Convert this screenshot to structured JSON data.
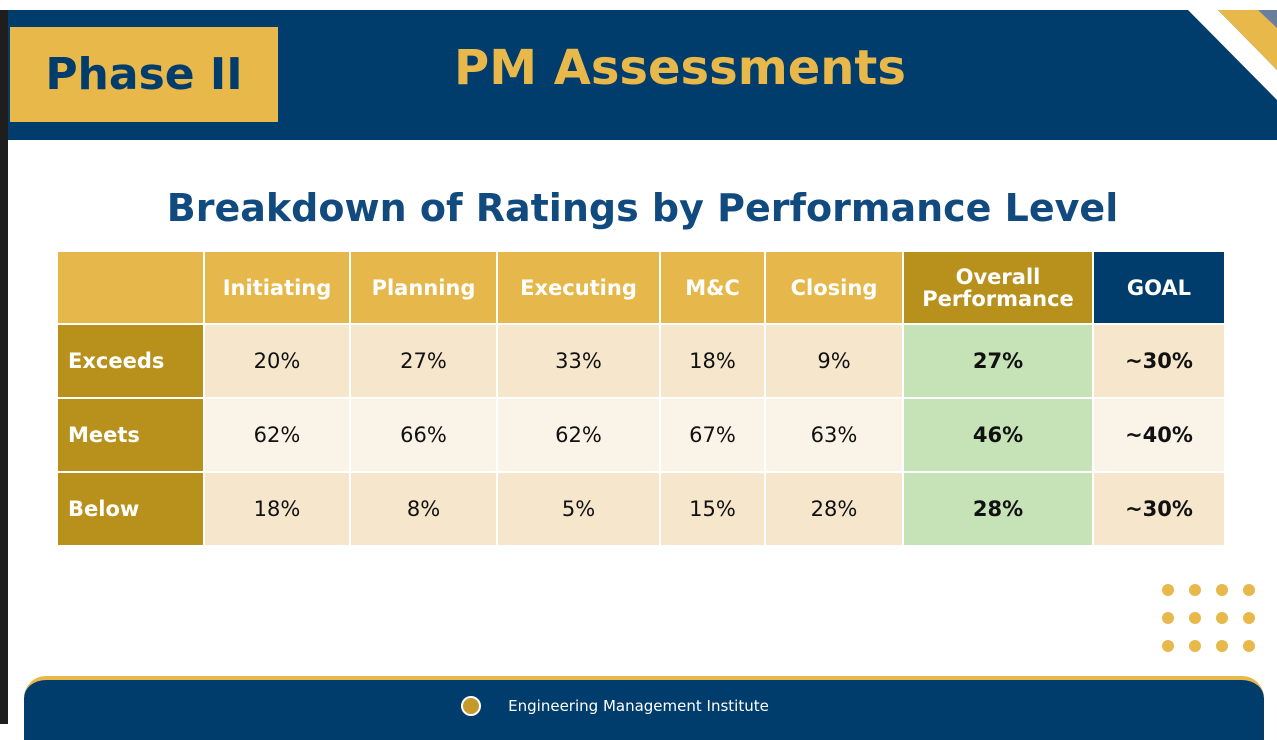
{
  "header": {
    "phase": "Phase II",
    "title": "PM Assessments"
  },
  "subtitle": "Breakdown of Ratings by Performance Level",
  "table": {
    "columns": [
      "Initiating",
      "Planning",
      "Executing",
      "M&C",
      "Closing",
      "Overall Performance",
      "GOAL"
    ],
    "rows": [
      {
        "label": "Exceeds",
        "cells": [
          "20%",
          "27%",
          "33%",
          "18%",
          "9%",
          "27%",
          "~30%"
        ]
      },
      {
        "label": "Meets",
        "cells": [
          "62%",
          "66%",
          "62%",
          "67%",
          "63%",
          "46%",
          "~40%"
        ]
      },
      {
        "label": "Below",
        "cells": [
          "18%",
          "8%",
          "5%",
          "15%",
          "28%",
          "28%",
          "~30%"
        ]
      }
    ]
  },
  "footer": "Engineering Management Institute"
}
